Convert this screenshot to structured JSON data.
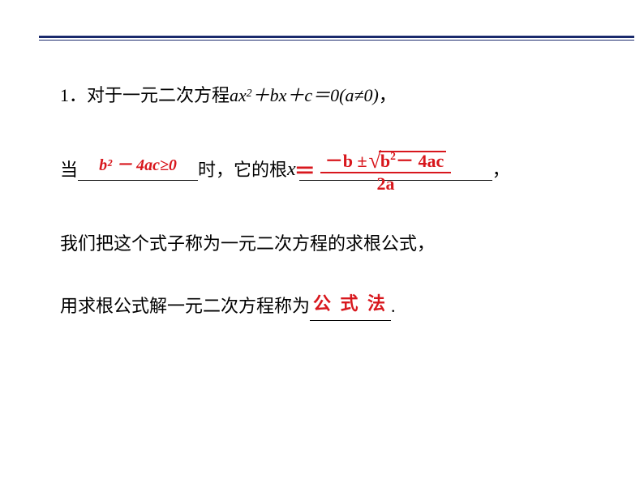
{
  "line1": {
    "prefix": "1．对于一元二次方程 ",
    "eq_a": "ax",
    "eq_exp": "2",
    "eq_mid": "＋bx＋c＝0(a≠0)",
    "suffix": "，"
  },
  "line2": {
    "dang": "当",
    "fill1": "b² － 4ac≥0",
    "shi": "时，它的根 ",
    "x": "x",
    "comma": "，",
    "formula": {
      "eq": "＝",
      "num_pre": "－b ±",
      "rad_b": "b",
      "rad_exp": "2",
      "rad_rest": " － 4ac",
      "den": "2a"
    }
  },
  "line3": {
    "text": "我们把这个式子称为一元二次方程的求根公式，"
  },
  "line4": {
    "pre": "用求根公式解一元二次方程称为",
    "fill": "公 式 法",
    "suffix": "."
  },
  "blank_widths": {
    "b1": "148px",
    "b2": "238px",
    "b3": "100px"
  }
}
